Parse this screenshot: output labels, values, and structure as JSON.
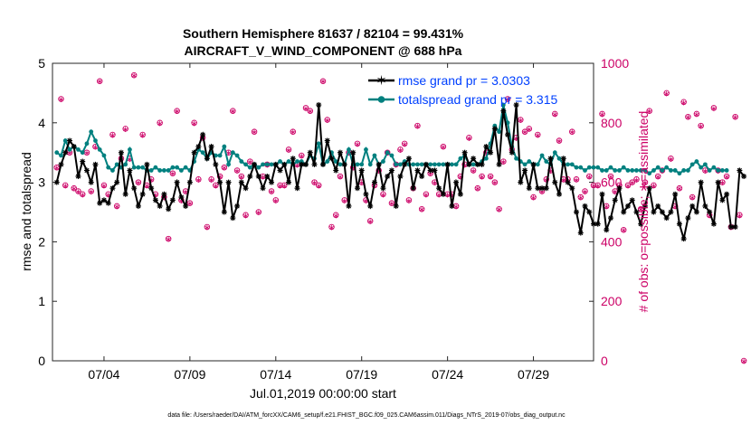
{
  "chart_data": {
    "type": "line",
    "title": "Southern Hemisphere 81637 / 82104 = 99.431%",
    "subtitle": "AIRCRAFT_V_WIND_COMPONENT @ 688 hPa",
    "ylabel_left": "rmse and totalspread",
    "ylabel_right": "# of obs: o=possible; ∗=assimilated",
    "xlabel": "Jul.01,2019 00:00:00 start",
    "footer": "data file: /Users/raeder/DAI/ATM_forcXX/CAM6_setup/f.e21.FHIST_BGC.f09_025.CAM6assim.011/Diags_NTrS_2019-07/obs_diag_output.nc",
    "left_axis": {
      "min": 0,
      "max": 5,
      "ticks": [
        "0",
        "1",
        "2",
        "3",
        "4",
        "5"
      ]
    },
    "right_axis": {
      "min": 0,
      "max": 1000,
      "ticks": [
        "0",
        "200",
        "400",
        "600",
        "800",
        "1000"
      ]
    },
    "x_range_days": [
      0,
      31.5
    ],
    "x_ticks": [
      {
        "day": 3,
        "label": "07/04"
      },
      {
        "day": 8,
        "label": "07/09"
      },
      {
        "day": 13,
        "label": "07/14"
      },
      {
        "day": 18,
        "label": "07/19"
      },
      {
        "day": 23,
        "label": "07/24"
      },
      {
        "day": 28,
        "label": "07/29"
      }
    ],
    "step_days": 0.25,
    "legend": [
      {
        "label": "rmse grand pr = 3.0303",
        "color": "#000000"
      },
      {
        "label": "totalspread grand pr = 3.315",
        "color": "#00807f"
      }
    ],
    "series": [
      {
        "name": "rmse",
        "color": "#000000",
        "values": [
          3.0,
          3.3,
          3.5,
          3.7,
          3.6,
          3.1,
          3.35,
          3.2,
          3.0,
          3.3,
          2.65,
          2.7,
          2.65,
          2.9,
          3.0,
          3.5,
          2.8,
          3.2,
          2.9,
          2.6,
          2.8,
          3.3,
          2.9,
          2.7,
          2.6,
          2.8,
          2.55,
          2.7,
          3.0,
          2.75,
          2.6,
          3.0,
          3.5,
          3.6,
          3.8,
          3.4,
          3.6,
          3.3,
          3.0,
          2.5,
          3.0,
          2.4,
          2.6,
          3.0,
          2.9,
          3.1,
          3.3,
          3.1,
          2.9,
          3.1,
          3.0,
          3.3,
          3.2,
          3.3,
          3.0,
          3.4,
          2.9,
          3.3,
          3.3,
          3.5,
          3.3,
          4.3,
          3.3,
          3.7,
          3.4,
          3.2,
          3.5,
          3.3,
          2.6,
          3.5,
          2.9,
          3.2,
          2.8,
          2.6,
          3.0,
          3.3,
          2.9,
          3.1,
          3.2,
          2.6,
          3.1,
          3.3,
          3.4,
          2.9,
          3.2,
          3.1,
          3.3,
          3.2,
          3.2,
          2.9,
          2.8,
          3.3,
          2.6,
          3.0,
          2.8,
          3.5,
          3.3,
          3.4,
          3.3,
          3.3,
          3.6,
          3.5,
          3.9,
          3.3,
          4.2,
          3.8,
          3.5,
          4.3,
          3.0,
          3.2,
          2.9,
          3.3,
          2.9,
          2.9,
          2.9,
          3.4,
          3.0,
          2.8,
          3.4,
          3.0,
          2.9,
          2.5,
          2.15,
          2.6,
          2.5,
          2.3,
          2.3,
          2.8,
          2.2,
          2.4,
          2.7,
          2.9,
          2.5,
          2.6,
          2.7,
          2.5,
          2.3,
          2.6,
          2.9,
          2.5,
          2.6,
          2.5,
          2.4,
          2.5,
          2.8,
          2.3,
          2.05,
          2.4,
          2.6,
          2.5,
          3.0,
          2.6,
          2.5,
          2.3,
          3.0,
          2.7,
          2.8,
          2.25,
          2.25,
          3.2,
          3.1
        ]
      },
      {
        "name": "totalspread",
        "color": "#00807f",
        "values": [
          3.5,
          3.45,
          3.7,
          3.55,
          3.6,
          3.55,
          3.5,
          3.65,
          3.85,
          3.7,
          3.55,
          3.45,
          3.25,
          3.2,
          3.3,
          3.25,
          3.3,
          3.55,
          3.25,
          3.25,
          3.25,
          3.2,
          3.2,
          3.25,
          3.2,
          3.2,
          3.2,
          3.25,
          3.25,
          3.2,
          3.25,
          3.2,
          3.35,
          3.55,
          3.5,
          3.4,
          3.5,
          3.45,
          3.45,
          3.6,
          3.3,
          3.5,
          3.45,
          3.35,
          3.3,
          3.25,
          3.3,
          3.25,
          3.3,
          3.3,
          3.3,
          3.3,
          3.35,
          3.3,
          3.35,
          3.3,
          3.35,
          3.35,
          3.3,
          3.45,
          3.4,
          3.65,
          3.3,
          3.35,
          3.5,
          3.35,
          3.3,
          3.3,
          3.55,
          3.3,
          3.3,
          3.3,
          3.55,
          3.3,
          3.45,
          3.3,
          3.35,
          3.5,
          3.45,
          3.3,
          3.3,
          3.35,
          3.3,
          3.3,
          3.3,
          3.3,
          3.3,
          3.3,
          3.3,
          3.3,
          3.3,
          3.3,
          3.3,
          3.3,
          3.4,
          3.45,
          3.3,
          3.3,
          3.3,
          3.35,
          3.4,
          3.65,
          3.95,
          3.85,
          4.3,
          4.0,
          3.6,
          3.4,
          3.35,
          3.3,
          3.35,
          3.3,
          3.3,
          3.45,
          3.35,
          3.3,
          3.5,
          3.4,
          3.3,
          3.3,
          3.3,
          3.25,
          3.25,
          3.2,
          3.25,
          3.25,
          3.25,
          3.2,
          3.2,
          3.25,
          3.2,
          3.2,
          3.25,
          3.2,
          3.2,
          3.2,
          3.2,
          3.2,
          3.15,
          3.2,
          3.25,
          3.2,
          3.25,
          3.2,
          3.2,
          3.15,
          3.2,
          3.2,
          3.3,
          3.35,
          3.25,
          3.3,
          3.2,
          3.25,
          3.2,
          3.2,
          3.2
        ]
      },
      {
        "name": "obs_possible",
        "color": "#cc0066",
        "values": [
          650,
          880,
          590,
          700,
          580,
          570,
          560,
          700,
          570,
          720,
          940,
          590,
          560,
          760,
          520,
          680,
          780,
          680,
          960,
          600,
          760,
          590,
          610,
          560,
          800,
          550,
          410,
          630,
          840,
          540,
          570,
          530,
          800,
          610,
          750,
          450,
          610,
          590,
          620,
          650,
          700,
          840,
          640,
          620,
          490,
          670,
          770,
          500,
          620,
          660,
          570,
          540,
          590,
          590,
          710,
          770,
          660,
          690,
          850,
          840,
          600,
          590,
          940,
          810,
          450,
          490,
          620,
          540,
          700,
          650,
          730,
          600,
          540,
          470,
          590,
          640,
          560,
          700,
          530,
          660,
          710,
          730,
          540,
          580,
          790,
          510,
          560,
          630,
          600,
          560,
          720,
          560,
          560,
          520,
          620,
          660,
          750,
          640,
          580,
          620,
          700,
          620,
          600,
          510,
          670,
          880,
          710,
          750,
          810,
          770,
          780,
          550,
          760,
          570,
          610,
          640,
          830,
          740,
          610,
          610,
          770,
          610,
          550,
          570,
          620,
          590,
          590,
          830,
          520,
          620,
          570,
          590,
          440,
          590,
          600,
          610,
          510,
          600,
          840,
          590,
          620,
          640,
          900,
          680,
          520,
          580,
          870,
          820,
          550,
          830,
          790,
          640,
          490,
          850,
          640,
          600,
          620,
          450,
          820,
          490,
          0
        ]
      },
      {
        "name": "obs_assimilated",
        "color": "#cc0066",
        "values": [
          650,
          880,
          590,
          700,
          580,
          570,
          560,
          700,
          570,
          720,
          940,
          590,
          560,
          760,
          520,
          680,
          780,
          680,
          960,
          600,
          760,
          590,
          610,
          560,
          800,
          550,
          410,
          630,
          840,
          540,
          570,
          530,
          800,
          610,
          750,
          450,
          610,
          590,
          620,
          650,
          700,
          840,
          640,
          620,
          490,
          670,
          770,
          500,
          620,
          660,
          570,
          540,
          590,
          590,
          710,
          770,
          660,
          690,
          850,
          840,
          600,
          590,
          940,
          810,
          450,
          490,
          620,
          540,
          700,
          650,
          730,
          600,
          540,
          470,
          590,
          640,
          560,
          700,
          530,
          660,
          710,
          730,
          540,
          580,
          790,
          510,
          560,
          630,
          600,
          560,
          720,
          560,
          560,
          520,
          620,
          660,
          750,
          640,
          580,
          620,
          700,
          620,
          600,
          510,
          670,
          880,
          710,
          750,
          810,
          770,
          780,
          550,
          760,
          570,
          610,
          640,
          830,
          740,
          610,
          610,
          770,
          610,
          550,
          570,
          620,
          590,
          590,
          830,
          520,
          620,
          570,
          590,
          440,
          590,
          600,
          610,
          510,
          600,
          840,
          590,
          620,
          640,
          900,
          680,
          520,
          580,
          870,
          820,
          550,
          830,
          790,
          640,
          490,
          850,
          640,
          600,
          620,
          450,
          820,
          490,
          0
        ]
      }
    ]
  }
}
